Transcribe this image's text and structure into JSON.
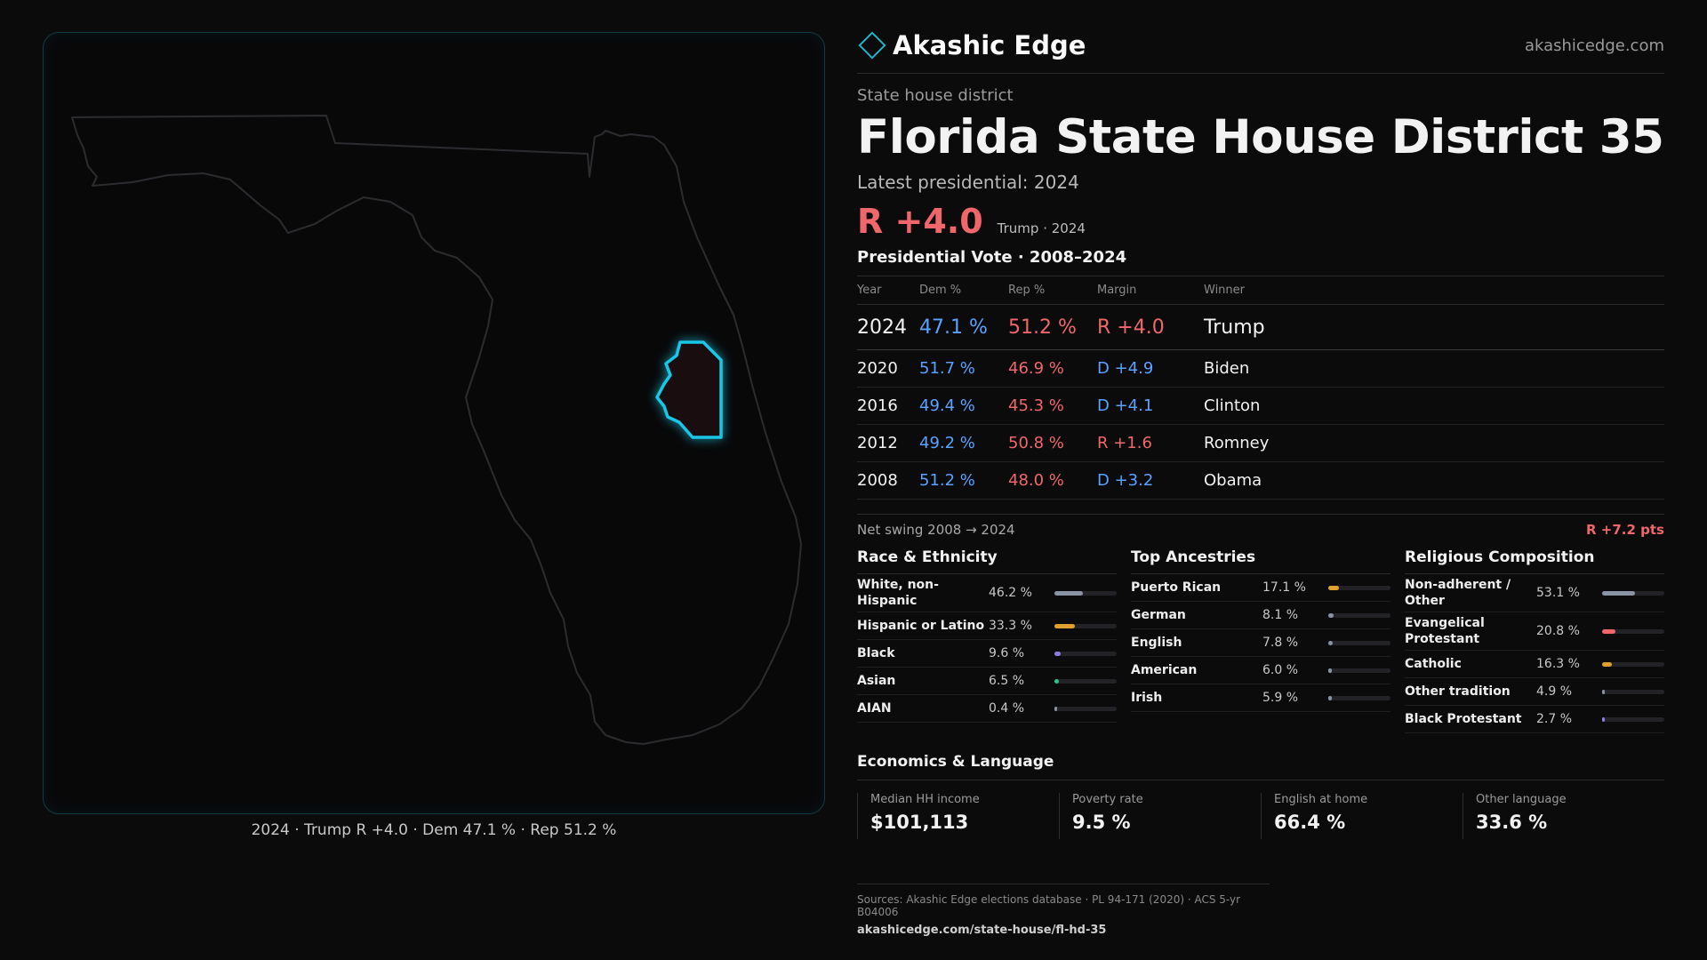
{
  "brand": {
    "name": "Akashic Edge",
    "url": "akashicedge.com"
  },
  "kicker": "State house district",
  "title": "Florida State House District 35",
  "latest_label": "Latest presidential: 2024",
  "headline_margin": "R +4.0",
  "headline_sub": "Trump · 2024",
  "vote_title": "Presidential Vote · 2008–2024",
  "vote_headers": {
    "year": "Year",
    "dem": "Dem %",
    "rep": "Rep %",
    "margin": "Margin",
    "winner": "Winner"
  },
  "votes": [
    {
      "year": "2024",
      "dem": "47.1 %",
      "rep": "51.2 %",
      "margin": "R +4.0",
      "winner": "Trump",
      "party": "R"
    },
    {
      "year": "2020",
      "dem": "51.7 %",
      "rep": "46.9 %",
      "margin": "D +4.9",
      "winner": "Biden",
      "party": "D"
    },
    {
      "year": "2016",
      "dem": "49.4 %",
      "rep": "45.3 %",
      "margin": "D +4.1",
      "winner": "Clinton",
      "party": "D"
    },
    {
      "year": "2012",
      "dem": "49.2 %",
      "rep": "50.8 %",
      "margin": "R +1.6",
      "winner": "Romney",
      "party": "R"
    },
    {
      "year": "2008",
      "dem": "51.2 %",
      "rep": "48.0 %",
      "margin": "D +3.2",
      "winner": "Obama",
      "party": "D"
    }
  ],
  "swing": {
    "label": "Net swing 2008 → 2024",
    "value": "R +7.2 pts"
  },
  "race": {
    "title": "Race & Ethnicity",
    "items": [
      {
        "label": "White, non-Hispanic",
        "pct": "46.2 %",
        "value": 0.462,
        "color": "#8a92a6"
      },
      {
        "label": "Hispanic or Latino",
        "pct": "33.3 %",
        "value": 0.333,
        "color": "#e0a030"
      },
      {
        "label": "Black",
        "pct": "9.6 %",
        "value": 0.096,
        "color": "#8c7ce0"
      },
      {
        "label": "Asian",
        "pct": "6.5 %",
        "value": 0.065,
        "color": "#2ec08a"
      },
      {
        "label": "AIAN",
        "pct": "0.4 %",
        "value": 0.004,
        "color": "#8a92a6"
      }
    ]
  },
  "ancestry": {
    "title": "Top Ancestries",
    "items": [
      {
        "label": "Puerto Rican",
        "pct": "17.1 %",
        "value": 0.171,
        "color": "#e0a030"
      },
      {
        "label": "German",
        "pct": "8.1 %",
        "value": 0.081,
        "color": "#8a92a6"
      },
      {
        "label": "English",
        "pct": "7.8 %",
        "value": 0.078,
        "color": "#8a92a6"
      },
      {
        "label": "American",
        "pct": "6.0 %",
        "value": 0.06,
        "color": "#8a92a6"
      },
      {
        "label": "Irish",
        "pct": "5.9 %",
        "value": 0.059,
        "color": "#8a92a6"
      }
    ]
  },
  "religion": {
    "title": "Religious Composition",
    "items": [
      {
        "label": "Non-adherent / Other",
        "pct": "53.1 %",
        "value": 0.531,
        "color": "#8a92a6"
      },
      {
        "label": "Evangelical Protestant",
        "pct": "20.8 %",
        "value": 0.208,
        "color": "#f0676b"
      },
      {
        "label": "Catholic",
        "pct": "16.3 %",
        "value": 0.163,
        "color": "#e0a030"
      },
      {
        "label": "Other tradition",
        "pct": "4.9 %",
        "value": 0.049,
        "color": "#8a92a6"
      },
      {
        "label": "Black Protestant",
        "pct": "2.7 %",
        "value": 0.027,
        "color": "#8c7ce0"
      }
    ]
  },
  "economics": {
    "title": "Economics & Language",
    "items": [
      {
        "label": "Median HH income",
        "value": "$101,113"
      },
      {
        "label": "Poverty rate",
        "value": "9.5 %"
      },
      {
        "label": "English at home",
        "value": "66.4 %"
      },
      {
        "label": "Other language",
        "value": "33.6 %"
      }
    ]
  },
  "map_caption": "2024 · Trump  R +4.0 · Dem 47.1 % · Rep 51.2 %",
  "sources": {
    "line": "Sources: Akashic Edge elections database · PL 94-171 (2020) · ACS 5-yr B04006",
    "url": "akashicedge.com/state-house/fl-hd-35"
  },
  "colors": {
    "accent": "#1fb3c9",
    "dem": "#5aa2ff",
    "rep": "#f0676b",
    "district_outline": "#19c6e6"
  }
}
